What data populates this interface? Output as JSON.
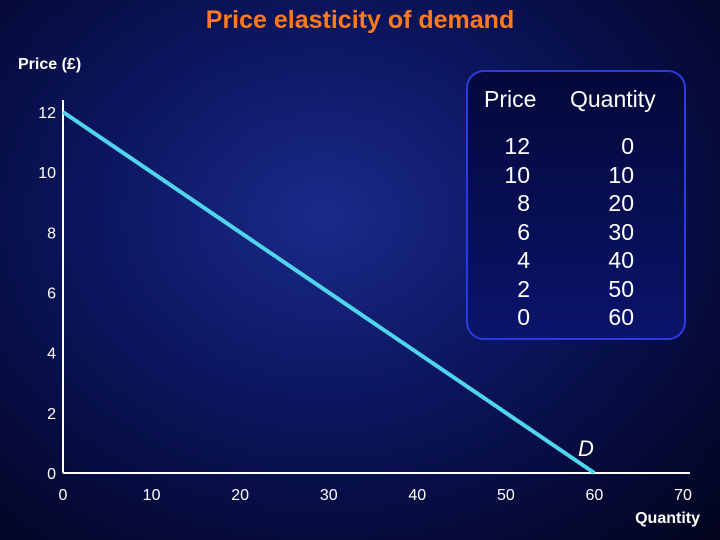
{
  "chart_data": {
    "type": "line",
    "title": "Price elasticity of demand",
    "xlabel": "Quantity",
    "ylabel": "Price (£)",
    "xlim": [
      0,
      70
    ],
    "ylim": [
      0,
      12
    ],
    "x_ticks": [
      "0",
      "10",
      "20",
      "30",
      "40",
      "50",
      "60",
      "70"
    ],
    "y_ticks": [
      "0",
      "2",
      "4",
      "6",
      "8",
      "10",
      "12"
    ],
    "series": [
      {
        "name": "D",
        "color": "#4fd6ee",
        "x": [
          0,
          10,
          20,
          30,
          40,
          50,
          60
        ],
        "y": [
          12,
          10,
          8,
          6,
          4,
          2,
          0
        ]
      }
    ],
    "grid": false,
    "legend": "none"
  },
  "table": {
    "headers": [
      "Price",
      "Quantity"
    ],
    "price": [
      "12",
      "10",
      "8",
      "6",
      "4",
      "2",
      "0"
    ],
    "quantity": [
      "0",
      "10",
      "20",
      "30",
      "40",
      "50",
      "60"
    ]
  },
  "colors": {
    "title": "#ff7a1a",
    "line": "#4fd6ee",
    "text": "#ffffff",
    "table_border": "#2a3ce0"
  }
}
